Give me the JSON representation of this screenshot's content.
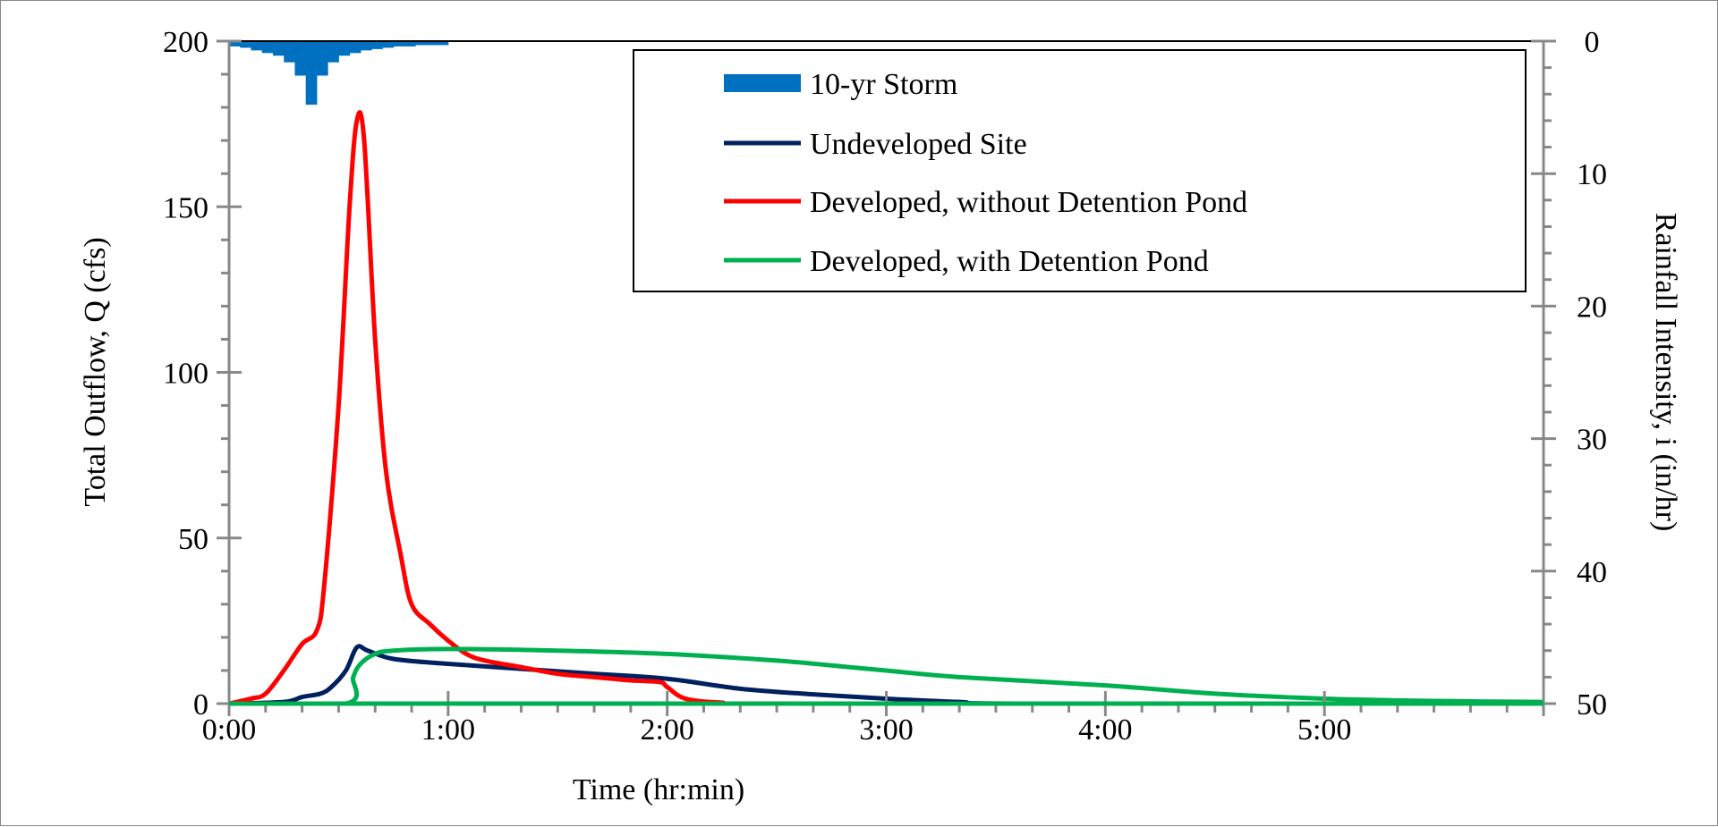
{
  "chart_data": {
    "type": "line",
    "title": "",
    "xlabel": "Time (hr:min)",
    "ylabel": "Total Outflow, Q (cfs)",
    "y2label": "Rainfall Intensity, i (in/hr)",
    "xlim_min": [
      0,
      360
    ],
    "ylim": [
      0,
      200
    ],
    "y2lim": [
      0,
      50
    ],
    "y2_inverted": true,
    "x_ticks": [
      "0:00",
      "1:00",
      "2:00",
      "3:00",
      "4:00",
      "5:00"
    ],
    "x_tick_values_min": [
      0,
      60,
      120,
      180,
      240,
      300
    ],
    "y_ticks": [
      "0",
      "50",
      "100",
      "150",
      "200"
    ],
    "y_tick_values": [
      0,
      50,
      100,
      150,
      200
    ],
    "y2_ticks": [
      "0",
      "10",
      "20",
      "30",
      "40",
      "50"
    ],
    "y2_tick_values": [
      0,
      10,
      20,
      30,
      40,
      50
    ],
    "grid": false,
    "legend_placement": "top-right",
    "rainfall": {
      "name": "10-yr Storm",
      "color": "#0070C0",
      "interval_min": 3,
      "start_min": [
        0,
        3,
        6,
        9,
        12,
        15,
        18,
        21,
        24,
        27,
        30,
        33,
        36,
        39,
        42,
        45,
        48,
        51,
        54,
        57
      ],
      "intensity_in_hr": [
        0.4,
        0.5,
        0.7,
        0.9,
        1.1,
        1.6,
        2.6,
        4.8,
        2.6,
        1.6,
        1.1,
        0.9,
        0.7,
        0.6,
        0.5,
        0.4,
        0.4,
        0.3,
        0.3,
        0.3
      ]
    },
    "series": [
      {
        "name": "Undeveloped Site",
        "color": "#002060",
        "x_min": [
          0,
          15,
          20,
          25,
          28,
          32,
          35,
          38,
          45,
          60,
          80,
          100,
          120,
          140,
          160,
          180,
          200,
          220,
          360
        ],
        "y": [
          0,
          0.5,
          2,
          3,
          5,
          10,
          17,
          16,
          13.5,
          12,
          10.5,
          9,
          7.5,
          4.5,
          2.8,
          1.5,
          0.5,
          0,
          0
        ]
      },
      {
        "name": "Developed, without Detention Pond",
        "color": "#FF0000",
        "x_min": [
          0,
          6,
          10,
          15,
          20,
          24,
          26,
          30,
          33,
          35,
          37,
          40,
          43,
          47,
          50,
          55,
          60,
          65,
          70,
          80,
          90,
          100,
          110,
          118,
          120,
          125,
          135,
          150,
          360
        ],
        "y": [
          0,
          1.5,
          3,
          10,
          18,
          22,
          35,
          90,
          150,
          176,
          170,
          110,
          70,
          45,
          30,
          24,
          19,
          15,
          13,
          11,
          9,
          8,
          7,
          6.5,
          5,
          1.5,
          0.3,
          0,
          0
        ]
      },
      {
        "name": "Developed, with Detention Pond",
        "color": "#00B050",
        "x_min": [
          0,
          32,
          34,
          36,
          40,
          45,
          60,
          90,
          120,
          150,
          170,
          180,
          200,
          240,
          270,
          300,
          330,
          360
        ],
        "y": [
          0,
          0,
          8,
          12,
          15,
          16,
          16.5,
          16,
          15,
          13,
          11,
          10,
          8,
          5.5,
          3,
          1.5,
          0.8,
          0.5
        ]
      }
    ]
  }
}
